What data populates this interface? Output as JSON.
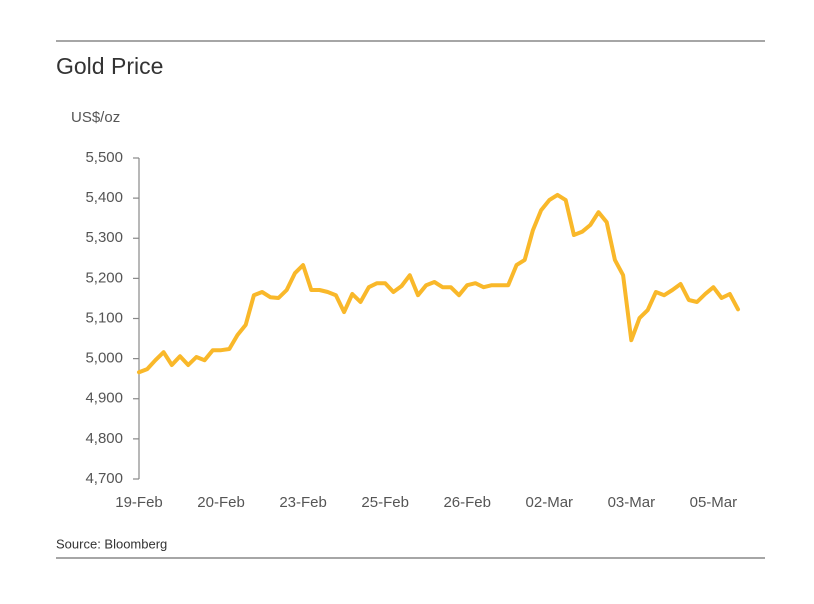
{
  "chart_data": {
    "type": "line",
    "title": "Gold Price",
    "y_label": "US$/oz",
    "source": "Source: Bloomberg",
    "categories": [
      "19-Feb",
      null,
      null,
      null,
      null,
      null,
      null,
      null,
      null,
      null,
      "20-Feb",
      null,
      null,
      null,
      null,
      null,
      null,
      null,
      null,
      null,
      "23-Feb",
      null,
      null,
      null,
      null,
      null,
      null,
      null,
      null,
      null,
      "25-Feb",
      null,
      null,
      null,
      null,
      null,
      null,
      null,
      null,
      null,
      "26-Feb",
      null,
      null,
      null,
      null,
      null,
      null,
      null,
      null,
      null,
      "02-Mar",
      null,
      null,
      null,
      null,
      null,
      null,
      null,
      null,
      null,
      "03-Mar",
      null,
      null,
      null,
      null,
      null,
      null,
      null,
      null,
      null,
      "05-Mar",
      null,
      null,
      null
    ],
    "values": [
      4966,
      4974,
      4996,
      5016,
      4984,
      5006,
      4984,
      5004,
      4996,
      5021,
      5021,
      5024,
      5059,
      5084,
      5158,
      5166,
      5153,
      5151,
      5171,
      5213,
      5233,
      5171,
      5171,
      5166,
      5158,
      5116,
      5161,
      5141,
      5178,
      5188,
      5188,
      5166,
      5181,
      5208,
      5158,
      5183,
      5191,
      5178,
      5178,
      5158,
      5183,
      5188,
      5178,
      5183,
      5183,
      5183,
      5233,
      5246,
      5320,
      5370,
      5395,
      5408,
      5395,
      5308,
      5316,
      5333,
      5365,
      5340,
      5246,
      5208,
      5046,
      5101,
      5121,
      5166,
      5158,
      5171,
      5186,
      5146,
      5141,
      5161,
      5178,
      5151,
      5161,
      5123
    ],
    "color": "#f9b82a",
    "ylim": [
      4700,
      5500
    ],
    "yticks": [
      {
        "value": 4700,
        "label": "4,700"
      },
      {
        "value": 4800,
        "label": "4,800"
      },
      {
        "value": 4900,
        "label": "4,900"
      },
      {
        "value": 5000,
        "label": "5,000"
      },
      {
        "value": 5100,
        "label": "5,100"
      },
      {
        "value": 5200,
        "label": "5,200"
      },
      {
        "value": 5300,
        "label": "5,300"
      },
      {
        "value": 5400,
        "label": "5,400"
      },
      {
        "value": 5500,
        "label": "5,500"
      }
    ]
  }
}
